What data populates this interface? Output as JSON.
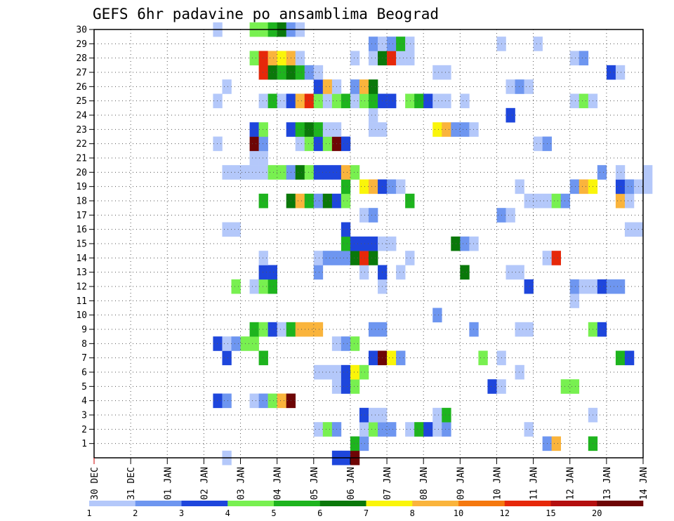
{
  "chart_data": {
    "type": "heatmap",
    "title": "GEFS 6hr padavine po ansamblima Beograd",
    "x_ticks": [
      "30 DEC",
      "31 DEC",
      "01 JAN",
      "02 JAN",
      "03 JAN",
      "04 JAN",
      "05 JAN",
      "06 JAN",
      "07 JAN",
      "08 JAN",
      "09 JAN",
      "10 JAN",
      "11 JAN",
      "12 JAN",
      "13 JAN",
      "14 JAN"
    ],
    "y_ticks": [
      1,
      2,
      3,
      4,
      5,
      6,
      7,
      8,
      9,
      10,
      11,
      12,
      13,
      14,
      15,
      16,
      17,
      18,
      19,
      20,
      21,
      22,
      23,
      24,
      25,
      26,
      27,
      28,
      29,
      30
    ],
    "x_range": [
      "30 DEC",
      "14 JAN"
    ],
    "y_range": [
      0,
      30
    ],
    "time_step_hours": 6,
    "grid": "dotted",
    "legend_position": "bottom",
    "color_levels": [
      {
        "label": "1",
        "color": "#b4c8fa"
      },
      {
        "label": "2",
        "color": "#6e96f0"
      },
      {
        "label": "3",
        "color": "#1e46dc"
      },
      {
        "label": "4",
        "color": "#78f050"
      },
      {
        "label": "5",
        "color": "#1eb41e"
      },
      {
        "label": "6",
        "color": "#0a780a"
      },
      {
        "label": "7",
        "color": "#faf50a"
      },
      {
        "label": "8",
        "color": "#fab43c"
      },
      {
        "label": "10",
        "color": "#f5780f"
      },
      {
        "label": "12",
        "color": "#e6280a"
      },
      {
        "label": "15",
        "color": "#b40f0f"
      },
      {
        "label": "20",
        "color": "#6e0505"
      }
    ],
    "legend_ticks": [
      "1",
      "2",
      "3",
      "4",
      "5",
      "6",
      "7",
      "8",
      "10",
      "12",
      "15",
      "20"
    ],
    "member_rows": {
      "30": [
        [
          13,
          1
        ],
        [
          17,
          4
        ],
        [
          18,
          4
        ],
        [
          19,
          5
        ],
        [
          20,
          6
        ],
        [
          21,
          2
        ],
        [
          22,
          1
        ]
      ],
      "29": [
        [
          30,
          2
        ],
        [
          31,
          1
        ],
        [
          32,
          2
        ],
        [
          33,
          5
        ],
        [
          34,
          1
        ],
        [
          44,
          1
        ],
        [
          48,
          1
        ]
      ],
      "28": [
        [
          17,
          4
        ],
        [
          18,
          10
        ],
        [
          19,
          8
        ],
        [
          20,
          7
        ],
        [
          21,
          8
        ],
        [
          22,
          1
        ],
        [
          28,
          1
        ],
        [
          30,
          1
        ],
        [
          31,
          6
        ],
        [
          32,
          10
        ],
        [
          33,
          1
        ],
        [
          34,
          1
        ],
        [
          52,
          1
        ],
        [
          53,
          2
        ]
      ],
      "27": [
        [
          18,
          10
        ],
        [
          19,
          6
        ],
        [
          20,
          5
        ],
        [
          21,
          6
        ],
        [
          22,
          5
        ],
        [
          23,
          2
        ],
        [
          24,
          1
        ],
        [
          37,
          1
        ],
        [
          38,
          1
        ],
        [
          56,
          3
        ],
        [
          57,
          1
        ]
      ],
      "26": [
        [
          14,
          1
        ],
        [
          24,
          3
        ],
        [
          25,
          8
        ],
        [
          26,
          1
        ],
        [
          28,
          2
        ],
        [
          29,
          8
        ],
        [
          30,
          6
        ],
        [
          45,
          1
        ],
        [
          46,
          2
        ],
        [
          47,
          1
        ]
      ],
      "25": [
        [
          13,
          1
        ],
        [
          18,
          1
        ],
        [
          19,
          5
        ],
        [
          20,
          1
        ],
        [
          21,
          3
        ],
        [
          22,
          8
        ],
        [
          23,
          10
        ],
        [
          24,
          4
        ],
        [
          25,
          1
        ],
        [
          26,
          4
        ],
        [
          27,
          5
        ],
        [
          28,
          1
        ],
        [
          29,
          4
        ],
        [
          30,
          5
        ],
        [
          31,
          3
        ],
        [
          32,
          3
        ],
        [
          34,
          4
        ],
        [
          35,
          5
        ],
        [
          36,
          3
        ],
        [
          37,
          1
        ],
        [
          38,
          1
        ],
        [
          40,
          1
        ],
        [
          52,
          1
        ],
        [
          53,
          4
        ],
        [
          54,
          1
        ]
      ],
      "24": [
        [
          30,
          1
        ],
        [
          45,
          3
        ]
      ],
      "23": [
        [
          17,
          3
        ],
        [
          18,
          4
        ],
        [
          21,
          3
        ],
        [
          22,
          5
        ],
        [
          23,
          6
        ],
        [
          24,
          5
        ],
        [
          25,
          1
        ],
        [
          26,
          1
        ],
        [
          30,
          1
        ],
        [
          31,
          1
        ],
        [
          37,
          7
        ],
        [
          38,
          8
        ],
        [
          39,
          2
        ],
        [
          40,
          2
        ],
        [
          41,
          1
        ]
      ],
      "22": [
        [
          13,
          1
        ],
        [
          17,
          12
        ],
        [
          18,
          2
        ],
        [
          22,
          1
        ],
        [
          23,
          4
        ],
        [
          24,
          3
        ],
        [
          25,
          4
        ],
        [
          26,
          12
        ],
        [
          27,
          3
        ],
        [
          48,
          1
        ],
        [
          49,
          2
        ]
      ],
      "21": [
        [
          17,
          1
        ],
        [
          18,
          1
        ]
      ],
      "20": [
        [
          14,
          1
        ],
        [
          15,
          1
        ],
        [
          16,
          1
        ],
        [
          17,
          1
        ],
        [
          18,
          1
        ],
        [
          19,
          4
        ],
        [
          20,
          4
        ],
        [
          21,
          2
        ],
        [
          22,
          6
        ],
        [
          23,
          4
        ],
        [
          24,
          3
        ],
        [
          25,
          3
        ],
        [
          26,
          3
        ],
        [
          27,
          8
        ],
        [
          28,
          4
        ],
        [
          55,
          2
        ],
        [
          57,
          1
        ],
        [
          60,
          1
        ]
      ],
      "19": [
        [
          27,
          5
        ],
        [
          29,
          7
        ],
        [
          30,
          8
        ],
        [
          31,
          3
        ],
        [
          32,
          2
        ],
        [
          33,
          1
        ],
        [
          46,
          1
        ],
        [
          52,
          2
        ],
        [
          53,
          8
        ],
        [
          54,
          7
        ],
        [
          57,
          3
        ],
        [
          58,
          2
        ],
        [
          59,
          1
        ],
        [
          60,
          1
        ]
      ],
      "18": [
        [
          18,
          5
        ],
        [
          21,
          6
        ],
        [
          22,
          8
        ],
        [
          23,
          5
        ],
        [
          24,
          2
        ],
        [
          25,
          6
        ],
        [
          26,
          3
        ],
        [
          27,
          4
        ],
        [
          34,
          5
        ],
        [
          47,
          1
        ],
        [
          48,
          1
        ],
        [
          49,
          1
        ],
        [
          50,
          4
        ],
        [
          51,
          2
        ],
        [
          57,
          8
        ],
        [
          58,
          1
        ]
      ],
      "17": [
        [
          29,
          1
        ],
        [
          30,
          2
        ],
        [
          44,
          2
        ],
        [
          45,
          1
        ]
      ],
      "16": [
        [
          14,
          1
        ],
        [
          15,
          1
        ],
        [
          27,
          3
        ],
        [
          58,
          1
        ],
        [
          59,
          1
        ]
      ],
      "15": [
        [
          27,
          5
        ],
        [
          28,
          3
        ],
        [
          29,
          3
        ],
        [
          30,
          3
        ],
        [
          31,
          1
        ],
        [
          32,
          1
        ],
        [
          39,
          6
        ],
        [
          40,
          2
        ],
        [
          41,
          1
        ]
      ],
      "14": [
        [
          18,
          1
        ],
        [
          24,
          1
        ],
        [
          25,
          2
        ],
        [
          26,
          2
        ],
        [
          27,
          2
        ],
        [
          28,
          6
        ],
        [
          29,
          10
        ],
        [
          30,
          6
        ],
        [
          34,
          1
        ],
        [
          49,
          1
        ],
        [
          50,
          10
        ]
      ],
      "13": [
        [
          18,
          3
        ],
        [
          19,
          3
        ],
        [
          24,
          2
        ],
        [
          29,
          1
        ],
        [
          31,
          3
        ],
        [
          33,
          1
        ],
        [
          40,
          6
        ],
        [
          45,
          1
        ],
        [
          46,
          1
        ]
      ],
      "12": [
        [
          15,
          4
        ],
        [
          17,
          1
        ],
        [
          18,
          4
        ],
        [
          19,
          5
        ],
        [
          31,
          1
        ],
        [
          47,
          3
        ],
        [
          52,
          2
        ],
        [
          53,
          1
        ],
        [
          54,
          1
        ],
        [
          55,
          3
        ],
        [
          56,
          2
        ],
        [
          57,
          2
        ]
      ],
      "11": [
        [
          52,
          1
        ]
      ],
      "10": [
        [
          37,
          2
        ]
      ],
      "9": [
        [
          17,
          5
        ],
        [
          18,
          4
        ],
        [
          19,
          3
        ],
        [
          20,
          1
        ],
        [
          21,
          5
        ],
        [
          22,
          8
        ],
        [
          23,
          8
        ],
        [
          24,
          8
        ],
        [
          30,
          2
        ],
        [
          31,
          2
        ],
        [
          41,
          2
        ],
        [
          46,
          1
        ],
        [
          47,
          1
        ],
        [
          54,
          4
        ],
        [
          55,
          3
        ]
      ],
      "8": [
        [
          13,
          3
        ],
        [
          14,
          1
        ],
        [
          15,
          2
        ],
        [
          16,
          4
        ],
        [
          17,
          4
        ],
        [
          26,
          1
        ],
        [
          27,
          2
        ],
        [
          28,
          4
        ]
      ],
      "7": [
        [
          14,
          3
        ],
        [
          18,
          5
        ],
        [
          30,
          3
        ],
        [
          31,
          12
        ],
        [
          32,
          7
        ],
        [
          33,
          2
        ],
        [
          42,
          4
        ],
        [
          44,
          1
        ],
        [
          57,
          5
        ],
        [
          58,
          3
        ]
      ],
      "6": [
        [
          24,
          1
        ],
        [
          25,
          1
        ],
        [
          26,
          1
        ],
        [
          27,
          3
        ],
        [
          28,
          7
        ],
        [
          29,
          4
        ],
        [
          46,
          1
        ]
      ],
      "5": [
        [
          26,
          1
        ],
        [
          27,
          3
        ],
        [
          28,
          4
        ],
        [
          43,
          3
        ],
        [
          44,
          1
        ],
        [
          51,
          4
        ],
        [
          52,
          4
        ]
      ],
      "4": [
        [
          13,
          3
        ],
        [
          14,
          2
        ],
        [
          17,
          1
        ],
        [
          18,
          2
        ],
        [
          19,
          4
        ],
        [
          20,
          8
        ],
        [
          21,
          12
        ]
      ],
      "3": [
        [
          29,
          3
        ],
        [
          30,
          1
        ],
        [
          31,
          1
        ],
        [
          37,
          1
        ],
        [
          38,
          5
        ],
        [
          54,
          1
        ]
      ],
      "2": [
        [
          24,
          1
        ],
        [
          25,
          4
        ],
        [
          26,
          2
        ],
        [
          29,
          1
        ],
        [
          30,
          4
        ],
        [
          31,
          2
        ],
        [
          32,
          2
        ],
        [
          34,
          1
        ],
        [
          35,
          5
        ],
        [
          36,
          3
        ],
        [
          37,
          1
        ],
        [
          38,
          2
        ],
        [
          47,
          1
        ]
      ],
      "1": [
        [
          28,
          5
        ],
        [
          29,
          2
        ],
        [
          49,
          2
        ],
        [
          50,
          8
        ],
        [
          54,
          5
        ]
      ],
      "0": [
        [
          14,
          1
        ],
        [
          26,
          3
        ],
        [
          27,
          3
        ],
        [
          28,
          12
        ]
      ]
    }
  }
}
